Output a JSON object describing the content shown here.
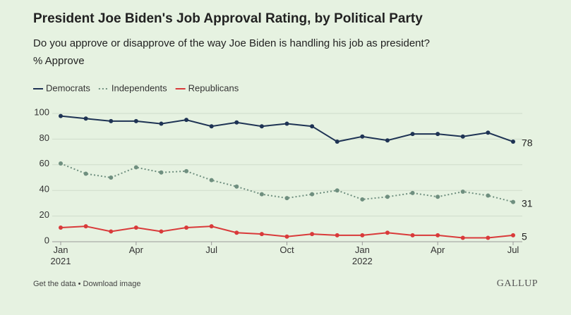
{
  "chart_data": {
    "type": "line",
    "title": "President Joe Biden's Job Approval Rating, by Political Party",
    "subtitle": "Do you approve or disapprove of the way Joe Biden is handling his job as president?",
    "y_label": "% Approve",
    "x": [
      "2021-01",
      "2021-02",
      "2021-03",
      "2021-04",
      "2021-05",
      "2021-06",
      "2021-07",
      "2021-08",
      "2021-09",
      "2021-10",
      "2021-11",
      "2021-12",
      "2022-01",
      "2022-02",
      "2022-03",
      "2022-04",
      "2022-05",
      "2022-06",
      "2022-07"
    ],
    "series": [
      {
        "name": "Democrats",
        "color": "#1e3354",
        "dash": "solid",
        "values": [
          98,
          96,
          94,
          94,
          92,
          95,
          90,
          93,
          90,
          92,
          90,
          78,
          82,
          79,
          84,
          84,
          82,
          85,
          78
        ]
      },
      {
        "name": "Independents",
        "color": "#6f8f7f",
        "dash": "dotted",
        "values": [
          61,
          53,
          50,
          58,
          54,
          55,
          48,
          43,
          37,
          34,
          37,
          40,
          33,
          35,
          38,
          35,
          39,
          36,
          31
        ]
      },
      {
        "name": "Republicans",
        "color": "#d93a3a",
        "dash": "solid",
        "values": [
          11,
          12,
          8,
          11,
          8,
          11,
          12,
          7,
          6,
          4,
          6,
          5,
          5,
          7,
          5,
          5,
          3,
          3,
          5
        ]
      }
    ],
    "xlim": [
      "2021-01",
      "2022-07"
    ],
    "xticks": [
      {
        "value": "2021-01",
        "label": "Jan 2021"
      },
      {
        "value": "2021-04",
        "label": "Apr"
      },
      {
        "value": "2021-07",
        "label": "Jul"
      },
      {
        "value": "2021-10",
        "label": "Oct"
      },
      {
        "value": "2022-01",
        "label": "Jan 2022"
      },
      {
        "value": "2022-04",
        "label": "Apr"
      },
      {
        "value": "2022-07",
        "label": "Jul"
      }
    ],
    "ylim": [
      0,
      100
    ],
    "yticks": [
      0,
      20,
      40,
      60,
      80,
      100
    ],
    "grid": true,
    "end_labels": true,
    "footer": "Get the data • Download image",
    "source": "GALLUP"
  }
}
